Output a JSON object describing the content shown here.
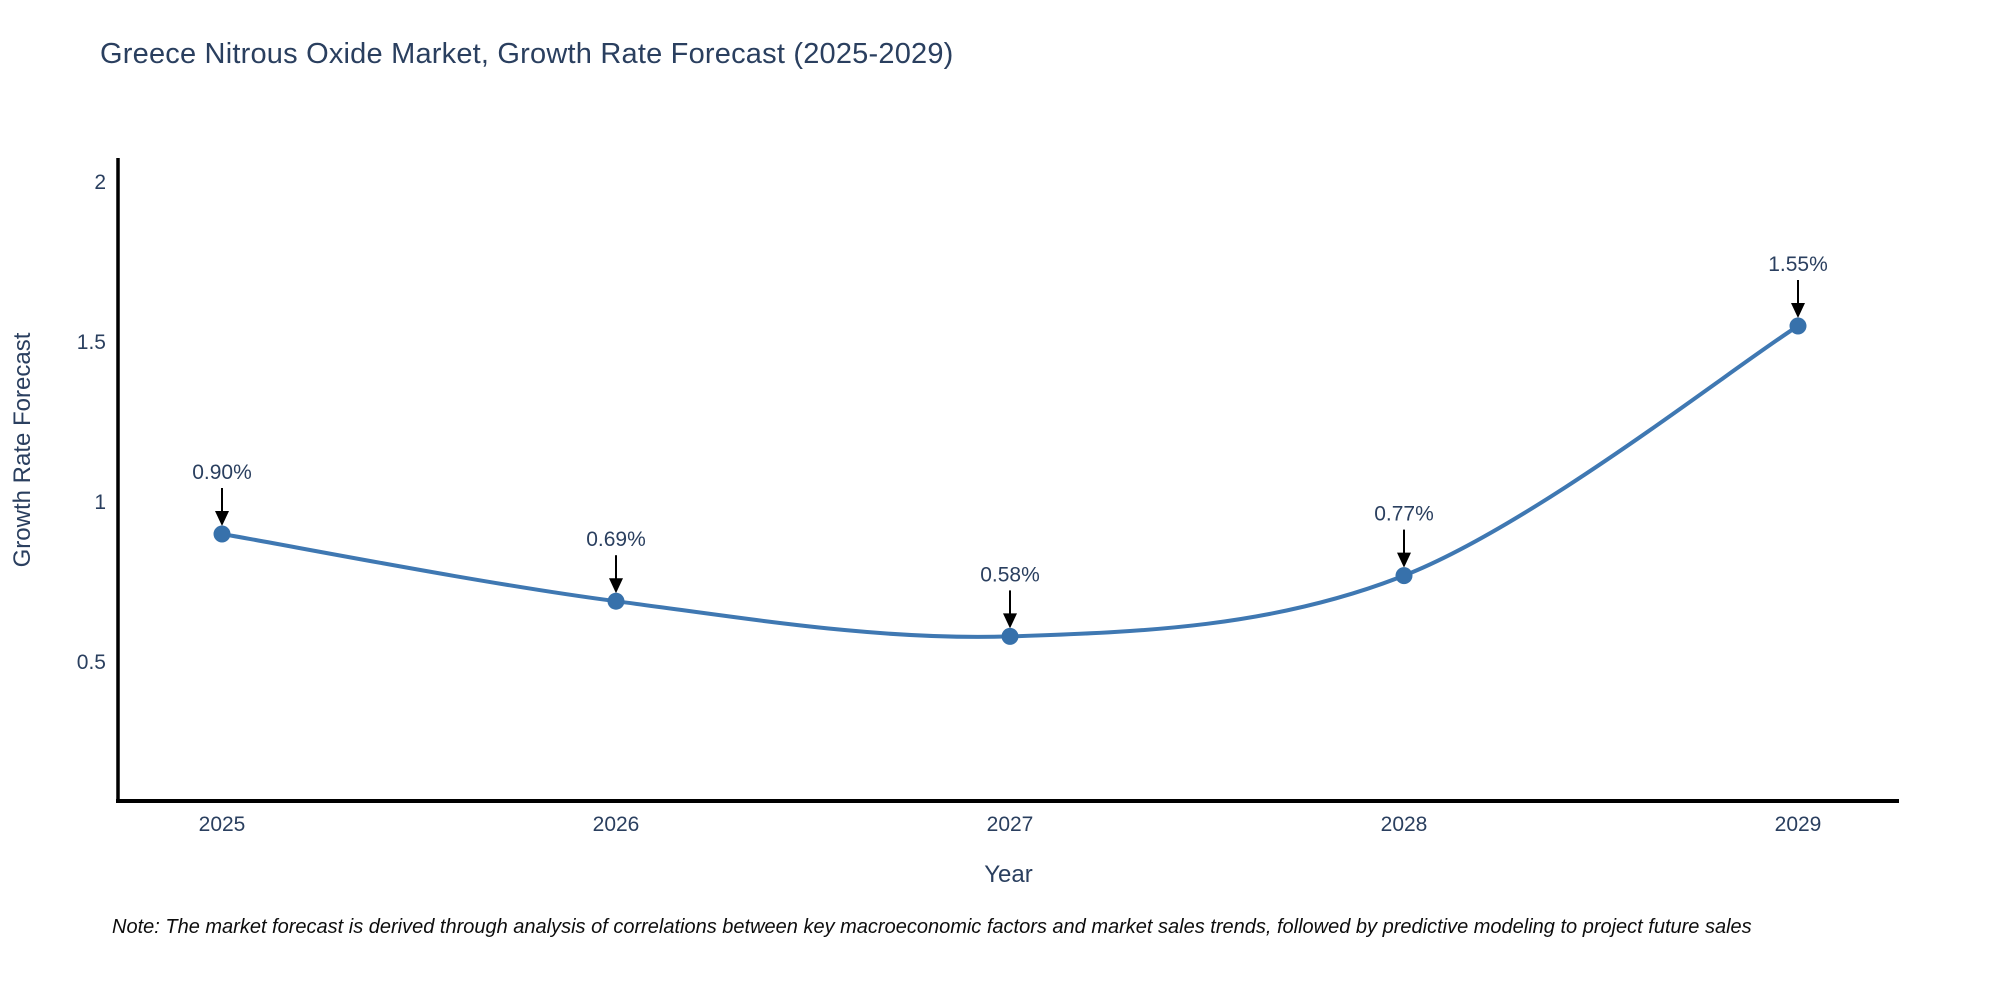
{
  "note": "Note: The market forecast is derived through analysis of correlations between key macroeconomic factors and market sales trends, followed by predictive modeling to project future sales",
  "chart_data": {
    "type": "line",
    "title": "Greece Nitrous Oxide Market, Growth Rate Forecast (2025-2029)",
    "categories": [
      "2025",
      "2026",
      "2027",
      "2028",
      "2029"
    ],
    "values": [
      0.9,
      0.69,
      0.58,
      0.77,
      1.55
    ],
    "data_labels": [
      "0.90%",
      "0.69%",
      "0.58%",
      "0.77%",
      "1.55%"
    ],
    "xlabel": "Year",
    "ylabel": "Growth Rate Forecast",
    "ytick_labels": [
      "0.5",
      "1",
      "1.5",
      "2"
    ],
    "ytick_values": [
      0.5,
      1,
      1.5,
      2
    ],
    "ylim": [
      0.07,
      2.07
    ],
    "line_shape": "spline",
    "grid": false,
    "legend": "none",
    "annotation_arrows": true,
    "colors": {
      "line": "#3f78b2",
      "marker": "#3771ab",
      "axis_line": "#000000",
      "text": "#2a3f5f",
      "annotation_text": "#2a3f5f",
      "arrow": "#000000",
      "note_text": "#0d0d0d",
      "background": "#ffffff"
    }
  }
}
